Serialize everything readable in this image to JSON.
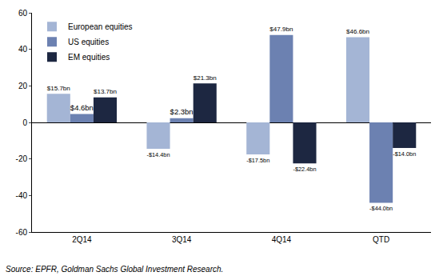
{
  "chart_data": {
    "type": "bar",
    "categories": [
      "2Q14",
      "3Q14",
      "4Q14",
      "QTD"
    ],
    "series": [
      {
        "name": "European equities",
        "color": "#a4b5d5",
        "values": [
          15.7,
          -14.4,
          -17.5,
          46.6
        ],
        "value_labels": [
          "$15.7bn",
          "-$14.4bn",
          "-$17.5bn",
          "$46.6bn"
        ]
      },
      {
        "name": "US equities",
        "color": "#6c81b1",
        "values": [
          4.6,
          2.3,
          47.9,
          -44.0
        ],
        "value_labels": [
          "$4.6bn",
          "$2.3bn",
          "$47.9bn",
          "-$44.0bn"
        ]
      },
      {
        "name": "EM equities",
        "color": "#1d2741",
        "values": [
          13.7,
          21.3,
          -22.4,
          -14.0
        ],
        "value_labels": [
          "$13.7bn",
          "$21.3bn",
          "-$22.4bn",
          "-$14.0bn"
        ]
      }
    ],
    "ylim": [
      -60,
      60
    ],
    "yticks": [
      -60,
      -40,
      -20,
      0,
      20,
      40,
      60
    ],
    "grid": false,
    "legend": "top-left",
    "data_labels": true,
    "annotations": [
      "Source: EPFR, Goldman Sachs Global Investment Research."
    ]
  }
}
